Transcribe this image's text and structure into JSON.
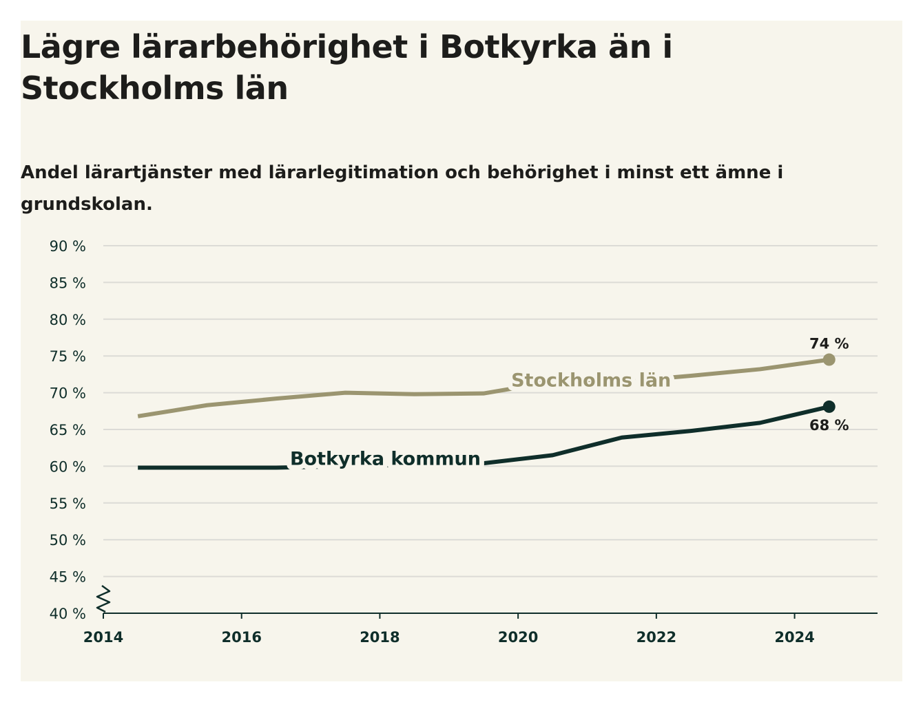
{
  "title": "Lägre lärarbehörighet i Botkyrka än i Stockholms län",
  "subtitle": "Andel lärartjänster med lärarlegitimation och behörighet i minst ett ämne i grundskolan.",
  "colors": {
    "background": "#f7f5ec",
    "stockholm": "#9b9570",
    "botkyrka": "#0f2e2a",
    "grid": "#dcdbd6",
    "axis": "#0f2e2a"
  },
  "chart_data": {
    "type": "line",
    "title": "Lägre lärarbehörighet i Botkyrka än i Stockholms län",
    "subtitle": "Andel lärartjänster med lärarlegitimation och behörighet i minst ett ämne i grundskolan.",
    "x_range": [
      2014,
      2025.2
    ],
    "ylim": [
      40,
      90
    ],
    "y_break": true,
    "grid": true,
    "x_ticks": [
      2014,
      2016,
      2018,
      2020,
      2022,
      2024
    ],
    "x_tick_labels": [
      "2014",
      "2016",
      "2018",
      "2020",
      "2022",
      "2024"
    ],
    "y_ticks": [
      40,
      45,
      50,
      55,
      60,
      65,
      70,
      75,
      80,
      85,
      90
    ],
    "y_tick_labels": [
      "40 %",
      "45 %",
      "50 %",
      "55 %",
      "60 %",
      "65 %",
      "70 %",
      "75 %",
      "80 %",
      "85 %",
      "90 %"
    ],
    "series": [
      {
        "name": "Stockholms län",
        "x": [
          2014.5,
          2015.5,
          2016.5,
          2017.5,
          2018.5,
          2019.5,
          2020.5,
          2021.5,
          2022.5,
          2023.5,
          2024.5
        ],
        "y": [
          66.8,
          68.3,
          69.2,
          70.0,
          69.8,
          69.9,
          71.5,
          71.5,
          72.3,
          73.2,
          74.5
        ],
        "end_label": "74 %"
      },
      {
        "name": "Botkyrka kommun",
        "x": [
          2014.5,
          2015.5,
          2016.5,
          2017.5,
          2018.5,
          2019.5,
          2020.5,
          2021.5,
          2022.5,
          2023.5,
          2024.5
        ],
        "y": [
          59.8,
          59.8,
          59.8,
          60.0,
          60.2,
          60.4,
          61.5,
          63.9,
          64.8,
          65.9,
          68.1
        ],
        "end_label": "68 %"
      }
    ]
  }
}
